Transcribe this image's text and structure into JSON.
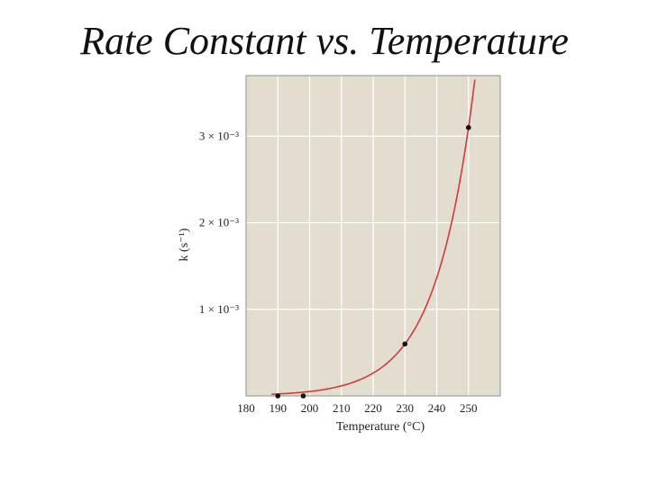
{
  "slide": {
    "title": "Rate Constant vs. Temperature"
  },
  "colors": {
    "plot_background": "#e2ddcf",
    "grid": "#ffffff",
    "curve": "#d23a3a",
    "points": "#111111",
    "frame": "#8f8f8f"
  },
  "chart_data": {
    "type": "line",
    "title": "Rate Constant vs. Temperature",
    "xlabel": "Temperature (°C)",
    "ylabel": "k (s⁻¹)",
    "xlim": [
      180,
      260
    ],
    "ylim": [
      0,
      0.0037
    ],
    "x_ticks": [
      {
        "value": 180,
        "label": "180"
      },
      {
        "value": 190,
        "label": "190"
      },
      {
        "value": 200,
        "label": "200"
      },
      {
        "value": 210,
        "label": "210"
      },
      {
        "value": 220,
        "label": "220"
      },
      {
        "value": 230,
        "label": "230"
      },
      {
        "value": 240,
        "label": "240"
      },
      {
        "value": 250,
        "label": "250"
      }
    ],
    "y_ticks": [
      {
        "value": 0.001,
        "label": "1 × 10⁻³"
      },
      {
        "value": 0.002,
        "label": "2 × 10⁻³"
      },
      {
        "value": 0.003,
        "label": "3 × 10⁻³"
      }
    ],
    "grid": true,
    "series": [
      {
        "kind": "curve",
        "x": [
          188,
          192,
          196,
          200,
          204,
          208,
          212,
          216,
          220,
          224,
          228,
          232,
          236,
          240,
          244,
          248,
          252
        ],
        "y": [
          0.0,
          0.0,
          0.0,
          0.0,
          0.0001,
          0.0001,
          0.0002,
          0.0003,
          0.0003,
          0.0004,
          0.0006,
          0.0008,
          0.0011,
          0.0015,
          0.0021,
          0.0029,
          0.0035
        ]
      },
      {
        "kind": "points",
        "x": [
          190,
          198,
          230,
          250
        ],
        "y": [
          0.0,
          0.0,
          0.0006,
          0.0031
        ]
      }
    ]
  }
}
